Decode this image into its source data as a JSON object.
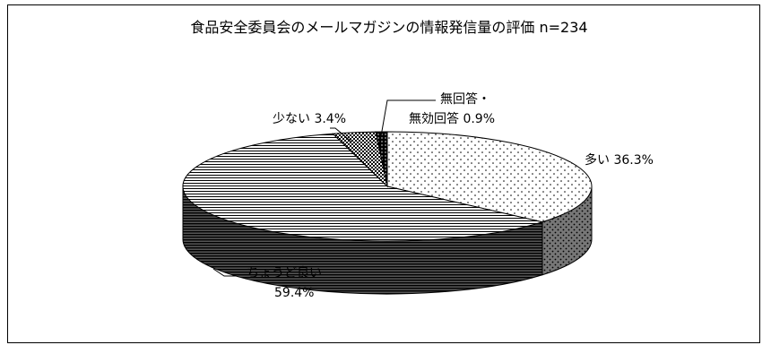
{
  "chart_data": {
    "type": "pie",
    "title": "食品安全委員会のメールマガジンの情報発信量の評価 n=234",
    "unit": "%",
    "slices": [
      {
        "name": "多い",
        "value": 36.3,
        "label_line1": "多い 36.3%",
        "pattern": "dots-fine"
      },
      {
        "name": "ちょうど良い",
        "value": 59.4,
        "label_line1": "ちょうど良い",
        "label_line2": "59.4%",
        "pattern": "horizontal-lines"
      },
      {
        "name": "少ない",
        "value": 3.4,
        "label_line1": "少ない 3.4%",
        "pattern": "checker"
      },
      {
        "name": "無回答・無効回答",
        "value": 0.9,
        "label_line1": "無回答・",
        "label_line2": "無効回答 0.9%",
        "pattern": "dark-dots"
      }
    ],
    "style": "3d-pie",
    "colors": {
      "border": "#000000",
      "background": "#ffffff"
    }
  }
}
